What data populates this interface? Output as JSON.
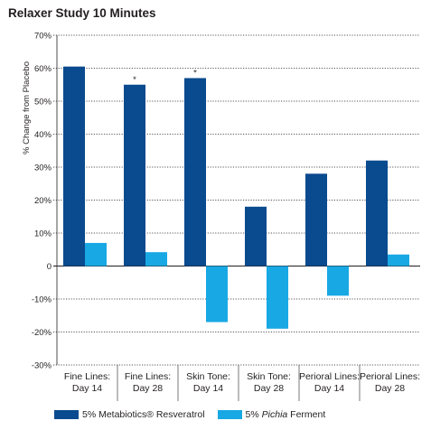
{
  "chart_data": {
    "type": "bar",
    "title": "Relaxer Study 10 Minutes",
    "ylabel": "% Change from Placebo",
    "xlabel": "",
    "ylim": [
      -30,
      70
    ],
    "yticks": [
      "70%",
      "60%",
      "50%",
      "40%",
      "30%",
      "20%",
      "10%",
      "0",
      "-10%",
      "-20%",
      "-30%"
    ],
    "categories": [
      [
        "Fine Lines:",
        "Day 14"
      ],
      [
        "Fine Lines:",
        "Day 28"
      ],
      [
        "Skin Tone:",
        "Day 14"
      ],
      [
        "Skin Tone:",
        "Day 28"
      ],
      [
        "Perioral Lines:",
        "Day 14"
      ],
      [
        "Perioral Lines:",
        "Day 28"
      ]
    ],
    "series": [
      {
        "name": "5% Metabiotics® Resveratrol",
        "color": "#0a4a8e",
        "values": [
          60.5,
          55,
          57,
          18,
          28,
          32
        ]
      },
      {
        "name": "5% Pichia Ferment",
        "color": "#18a8e4",
        "values": [
          7,
          4.2,
          -17,
          -19,
          -9,
          3.5
        ]
      }
    ],
    "annotations": [
      {
        "text": "*",
        "category_index": 1,
        "series_index": 0
      },
      {
        "text": "*",
        "category_index": 2,
        "series_index": 0
      }
    ],
    "legend": {
      "position": "bottom",
      "items": [
        {
          "prefix": "5% Metabiotics® Resveratrol",
          "emphasis": "",
          "suffix": "",
          "color": "#0a4a8e"
        },
        {
          "prefix": "5% ",
          "emphasis": "Pichia",
          "suffix": " Ferment",
          "color": "#18a8e4"
        }
      ]
    },
    "grid": true
  }
}
